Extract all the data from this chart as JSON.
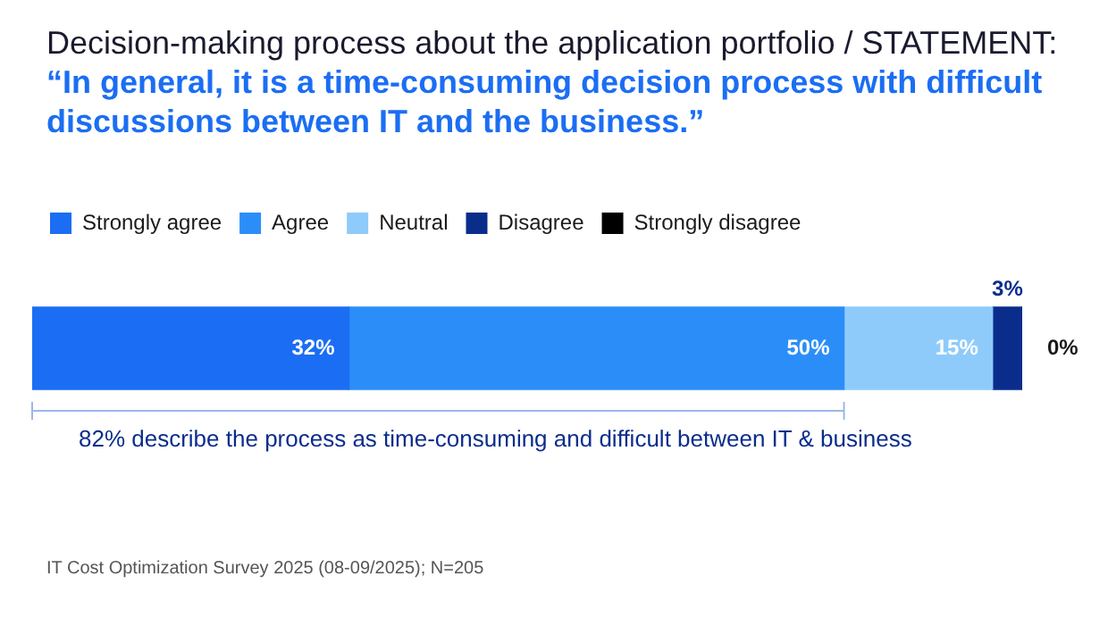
{
  "chart_data": {
    "type": "bar",
    "orientation": "horizontal",
    "stacked": true,
    "title": "Decision-making process about the application portfolio / STATEMENT:",
    "subtitle": "“In general, it is a time-consuming decision process with difficult discussions between IT and the business.”",
    "categories": [
      null
    ],
    "legend": "top left",
    "tick_labels": false,
    "series": [
      {
        "name": "Strongly agree",
        "color": "#1b6ef3",
        "values": [
          32
        ],
        "value_labels": [
          "32%"
        ]
      },
      {
        "name": "Agree",
        "color": "#2b8ef8",
        "values": [
          50
        ],
        "value_labels": [
          "50%"
        ]
      },
      {
        "name": "Neutral",
        "color": "#8ecbfb",
        "values": [
          15
        ],
        "value_labels": [
          "15%"
        ]
      },
      {
        "name": "Disagree",
        "color": "#0a2d8c",
        "values": [
          3
        ],
        "value_labels": [
          "3%"
        ]
      },
      {
        "name": "Strongly disagree",
        "color": "#000000",
        "values": [
          0
        ],
        "value_labels": [
          "0%"
        ]
      }
    ],
    "annotations": [
      "82% describe the process as time-consuming and difficult between IT & business",
      "IT Cost Optimization Survey 2025 (08-09/2025); N=205"
    ]
  }
}
